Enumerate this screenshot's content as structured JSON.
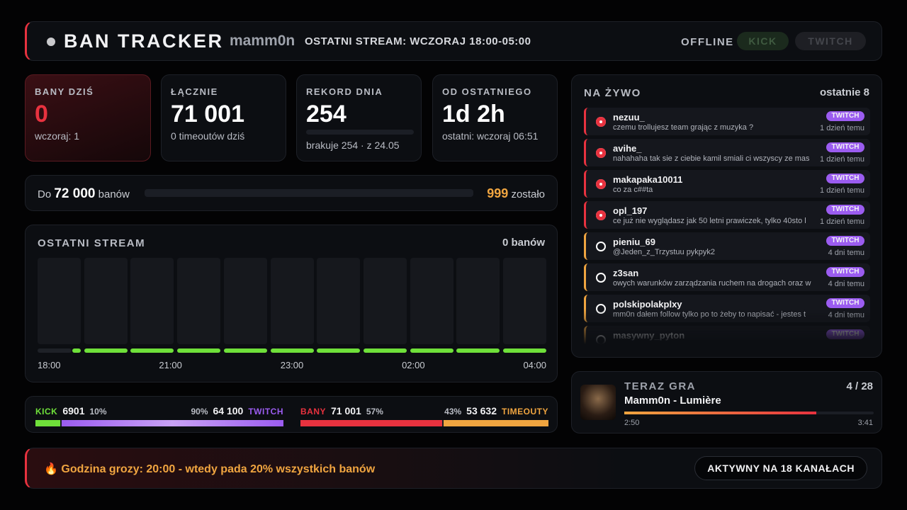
{
  "header": {
    "title": "BAN TRACKER",
    "user": "mamm0n",
    "last_stream": "OSTATNI STREAM: WCZORAJ 18:00-05:00",
    "status": "OFFLINE",
    "platforms": [
      "KICK",
      "TWITCH"
    ]
  },
  "stats": [
    {
      "label": "BANY DZIŚ",
      "value": "0",
      "sub": "wczoraj: 1"
    },
    {
      "label": "ŁĄCZNIE",
      "value": "71 001",
      "sub": "0 timeoutów dziś"
    },
    {
      "label": "REKORD DNIA",
      "value": "254",
      "sub": "brakuje 254 · z 24.05"
    },
    {
      "label": "OD OSTATNIEGO",
      "value": "1d 2h",
      "sub": "ostatni: wczoraj 06:51"
    }
  ],
  "goal": {
    "prefix": "Do",
    "target": "72 000",
    "suffix": "banów",
    "remaining": "999",
    "remaining_suffix": "zostało"
  },
  "last_stream": {
    "title": "OSTATNI STREAM",
    "count": "0 banów",
    "x_labels": [
      "18:00",
      "21:00",
      "23:00",
      "02:00",
      "04:00"
    ]
  },
  "splits": [
    {
      "left_label": "KICK",
      "left_value": "6901",
      "left_pct": "10%",
      "right_pct": "90%",
      "right_value": "64 100",
      "right_label": "TWITCH"
    },
    {
      "left_label": "BANY",
      "left_value": "71 001",
      "left_pct": "57%",
      "right_pct": "43%",
      "right_value": "53 632",
      "right_label": "TIMEOUTY"
    }
  ],
  "live": {
    "title": "NA ŻYWO",
    "subtitle": "ostatnie 8",
    "items": [
      {
        "color": "#e8323f",
        "user": "nezuu_",
        "message": "czemu trollujesz team grając z muzyka ?",
        "platform": "TWITCH",
        "time": "1 dzień temu"
      },
      {
        "color": "#e8323f",
        "user": "avihe_",
        "message": "nahahaha tak sie z ciebie kamil smiali ci wszyscy ze mas",
        "platform": "TWITCH",
        "time": "1 dzień temu"
      },
      {
        "color": "#e8323f",
        "user": "makapaka10011",
        "message": "co za c##ta",
        "platform": "TWITCH",
        "time": "1 dzień temu"
      },
      {
        "color": "#e8323f",
        "user": "opl_197",
        "message": "ce już nie wyglądasz jak 50 letni prawiczek, tylko 40sto l",
        "platform": "TWITCH",
        "time": "1 dzień temu"
      },
      {
        "color": "#f0a540",
        "user": "pieniu_69",
        "message": "@Jeden_z_Trzystuu pykpyk2",
        "platform": "TWITCH",
        "time": "4 dni temu"
      },
      {
        "color": "#f0a540",
        "user": "z3san",
        "message": "owych warunków zarządzania ruchem na drogach oraz w",
        "platform": "TWITCH",
        "time": "4 dni temu"
      },
      {
        "color": "#f0a540",
        "user": "polskipolakplxy",
        "message": "mm0n dałem follow tylko po to żeby to napisać - jestes t",
        "platform": "TWITCH",
        "time": "4 dni temu"
      },
      {
        "color": "#f0a540",
        "user": "masywny_pyton",
        "message": "",
        "platform": "TWITCH",
        "time": ""
      }
    ]
  },
  "now_playing": {
    "title": "TERAZ GRA",
    "position": "4 / 28",
    "track": "Mamm0n - Lumière",
    "elapsed": "2:50",
    "duration": "3:41"
  },
  "footer": {
    "text": "🔥 Godzina grozy: 20:00 - wtedy pada 20% wszystkich banów",
    "channels": "AKTYWNY NA 18 KANAŁACH"
  }
}
